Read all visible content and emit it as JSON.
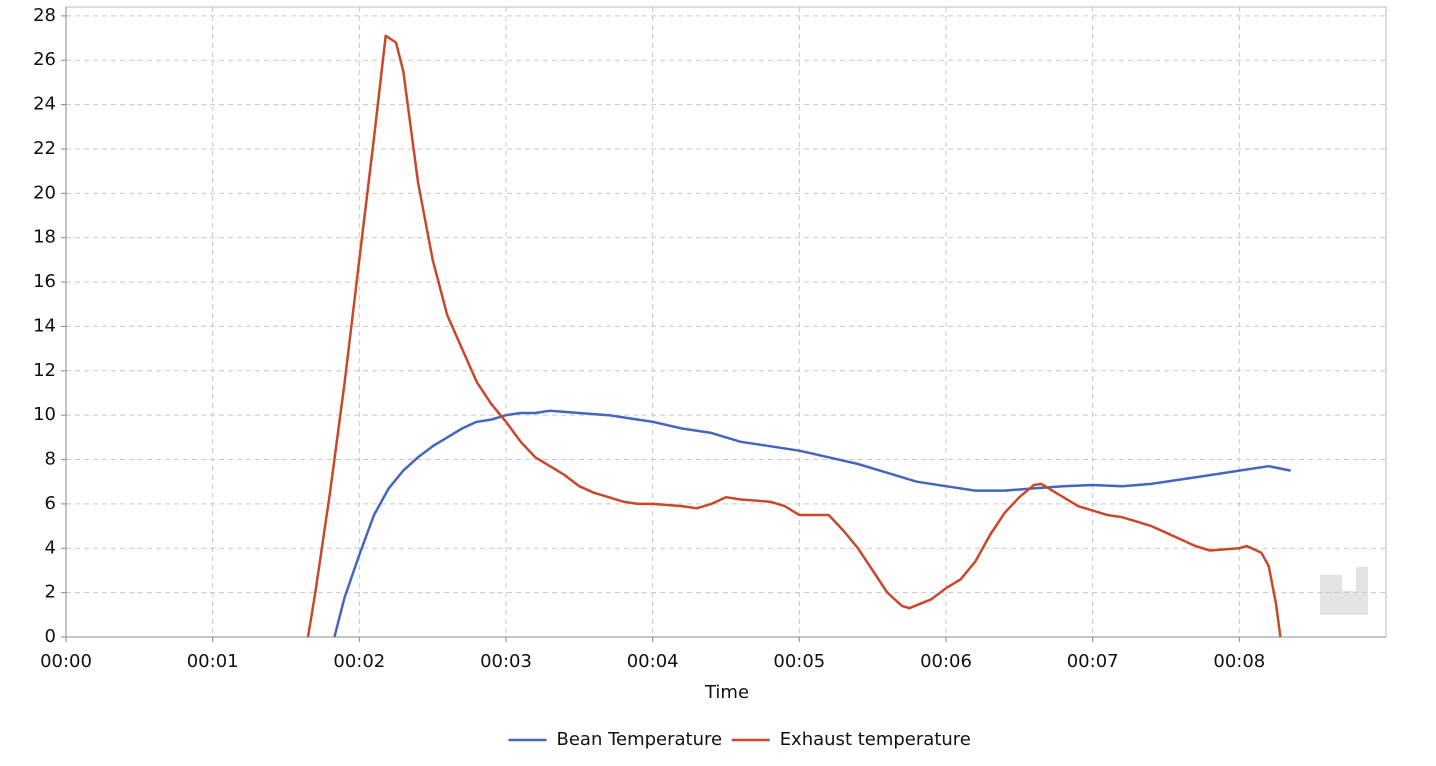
{
  "chart_data": {
    "type": "line",
    "x_label": "Time",
    "xlim": [
      0,
      9
    ],
    "ylim": [
      0,
      28.4
    ],
    "xticks": [
      {
        "value": 0,
        "label": "00:00"
      },
      {
        "value": 1,
        "label": "00:01"
      },
      {
        "value": 2,
        "label": "00:02"
      },
      {
        "value": 3,
        "label": "00:03"
      },
      {
        "value": 4,
        "label": "00:04"
      },
      {
        "value": 5,
        "label": "00:05"
      },
      {
        "value": 6,
        "label": "00:06"
      },
      {
        "value": 7,
        "label": "00:07"
      },
      {
        "value": 8,
        "label": "00:08"
      }
    ],
    "yticks": [
      0,
      2,
      4,
      6,
      8,
      10,
      12,
      14,
      16,
      18,
      20,
      22,
      24,
      26,
      28
    ],
    "grid": true,
    "legend": "bottom",
    "series": [
      {
        "name": "Bean Temperature",
        "color": "#4466c0",
        "x": [
          1.83,
          1.9,
          2.0,
          2.1,
          2.2,
          2.3,
          2.4,
          2.5,
          2.6,
          2.7,
          2.8,
          2.9,
          3.0,
          3.1,
          3.2,
          3.3,
          3.5,
          3.7,
          3.9,
          4.0,
          4.2,
          4.4,
          4.6,
          4.8,
          5.0,
          5.2,
          5.4,
          5.6,
          5.8,
          6.0,
          6.2,
          6.4,
          6.6,
          6.8,
          7.0,
          7.2,
          7.4,
          7.6,
          7.8,
          8.0,
          8.2,
          8.35
        ],
        "values": [
          0,
          1.8,
          3.7,
          5.5,
          6.7,
          7.5,
          8.1,
          8.6,
          9.0,
          9.4,
          9.7,
          9.8,
          10.0,
          10.1,
          10.1,
          10.2,
          10.1,
          10.0,
          9.8,
          9.7,
          9.4,
          9.2,
          8.8,
          8.6,
          8.4,
          8.1,
          7.8,
          7.4,
          7.0,
          6.8,
          6.6,
          6.6,
          6.7,
          6.8,
          6.85,
          6.8,
          6.9,
          7.1,
          7.3,
          7.5,
          7.7,
          7.5
        ]
      },
      {
        "name": "Exhaust temperature",
        "color": "#c8482a",
        "x": [
          1.65,
          1.7,
          1.8,
          1.9,
          2.0,
          2.1,
          2.18,
          2.25,
          2.3,
          2.4,
          2.5,
          2.6,
          2.7,
          2.8,
          2.9,
          3.0,
          3.1,
          3.2,
          3.3,
          3.4,
          3.5,
          3.6,
          3.7,
          3.8,
          3.9,
          4.0,
          4.2,
          4.3,
          4.4,
          4.5,
          4.6,
          4.8,
          4.9,
          5.0,
          5.1,
          5.2,
          5.3,
          5.4,
          5.5,
          5.6,
          5.7,
          5.75,
          5.9,
          6.0,
          6.1,
          6.2,
          6.3,
          6.4,
          6.5,
          6.6,
          6.65,
          6.7,
          6.8,
          6.9,
          7.0,
          7.1,
          7.2,
          7.3,
          7.4,
          7.5,
          7.6,
          7.7,
          7.8,
          8.0,
          8.05,
          8.15,
          8.2,
          8.25,
          8.28
        ],
        "values": [
          0,
          2,
          6.5,
          11.5,
          17,
          22.5,
          27.1,
          26.8,
          25.5,
          20.5,
          17,
          14.5,
          13,
          11.5,
          10.5,
          9.7,
          8.8,
          8.1,
          7.7,
          7.3,
          6.8,
          6.5,
          6.3,
          6.1,
          6.0,
          6.0,
          5.9,
          5.8,
          6.0,
          6.3,
          6.2,
          6.1,
          5.9,
          5.5,
          5.5,
          5.5,
          4.8,
          4.0,
          3.0,
          2.0,
          1.4,
          1.3,
          1.7,
          2.2,
          2.6,
          3.4,
          4.6,
          5.6,
          6.3,
          6.85,
          6.9,
          6.7,
          6.3,
          5.9,
          5.7,
          5.5,
          5.4,
          5.2,
          5.0,
          4.7,
          4.4,
          4.1,
          3.9,
          4.0,
          4.1,
          3.8,
          3.2,
          1.5,
          0
        ]
      }
    ]
  }
}
